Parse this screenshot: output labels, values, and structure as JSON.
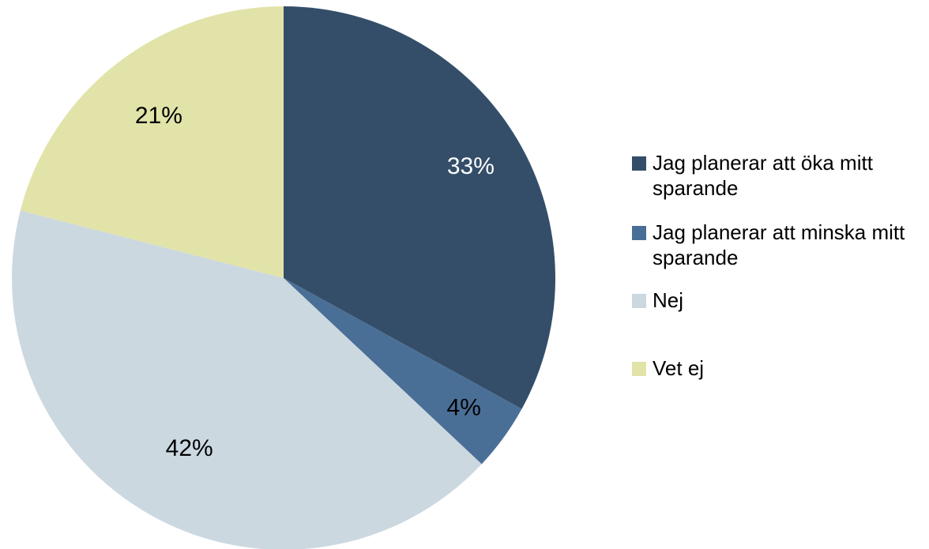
{
  "chart_data": {
    "type": "pie",
    "categories": [
      "Jag planerar att öka mitt sparande",
      "Jag planerar att minska mitt sparande",
      "Nej",
      "Vet ej"
    ],
    "values": [
      33,
      4,
      42,
      21
    ],
    "value_labels": [
      "33%",
      "4%",
      "42%",
      "21%"
    ],
    "colors": [
      "#344e69",
      "#4a6f97",
      "#ccd8e0",
      "#e2e3a9"
    ],
    "label_colors": [
      "#ffffff",
      "#000000",
      "#000000",
      "#000000"
    ],
    "start_angle": "12 o'clock",
    "direction": "clockwise",
    "legend": "right"
  },
  "legend": {
    "items": [
      {
        "label": "Jag planerar att öka mitt sparande",
        "color": "#344e69"
      },
      {
        "label": "Jag planerar att minska mitt sparande",
        "color": "#4a6f97"
      },
      {
        "label": "Nej",
        "color": "#ccd8e0"
      },
      {
        "label": "Vet ej",
        "color": "#e2e3a9"
      }
    ]
  }
}
